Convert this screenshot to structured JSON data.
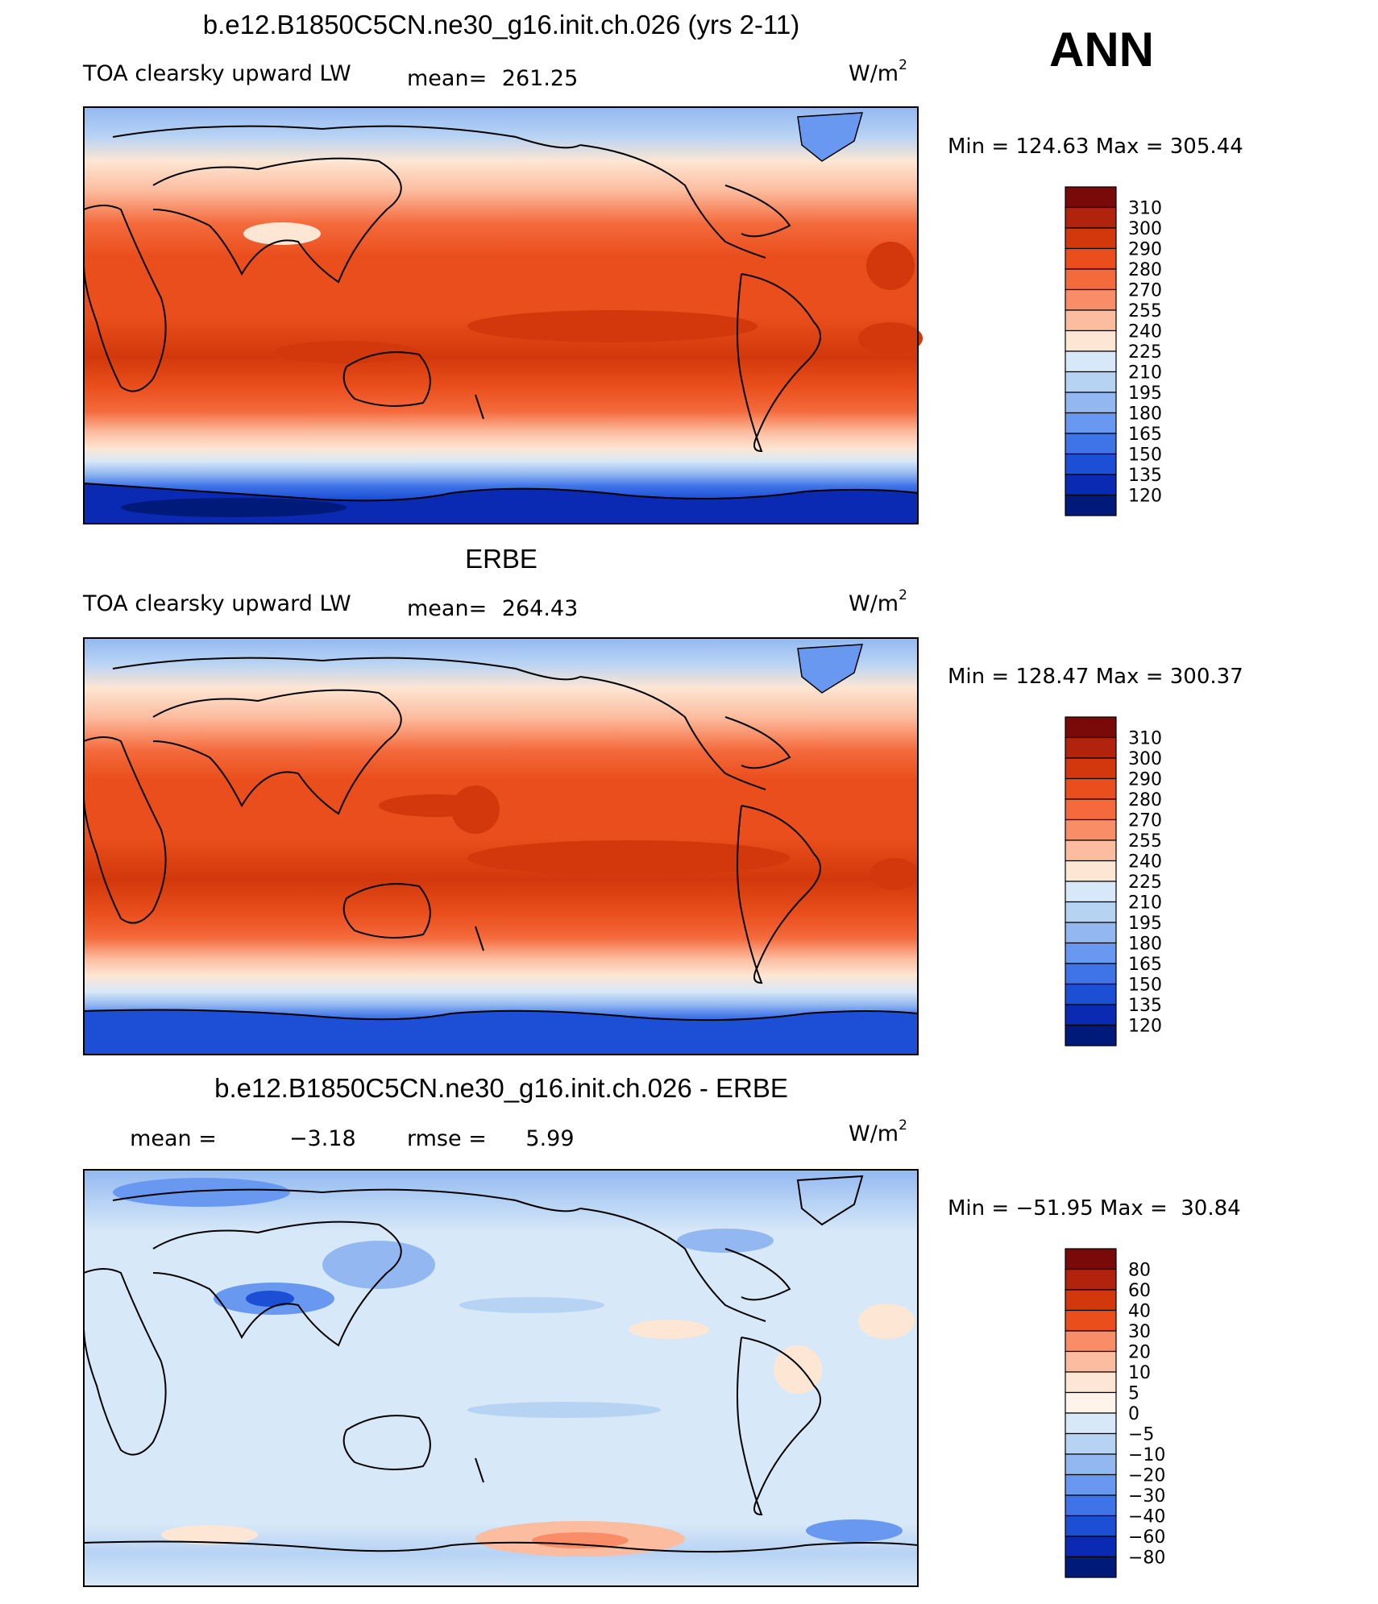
{
  "season": "ANN",
  "units_label": "W/m",
  "units_sup": "2",
  "panels": [
    {
      "title": "b.e12.B1850C5CN.ne30_g16.init.ch.026 (yrs 2-11)",
      "left_label": "TOA clearsky upward LW",
      "stat_label": "mean=",
      "stat_value": "261.25",
      "minmax": "Min = 124.63 Max = 305.44",
      "colorbar": [
        "310",
        "300",
        "290",
        "280",
        "270",
        "255",
        "240",
        "225",
        "210",
        "195",
        "180",
        "165",
        "150",
        "135",
        "120"
      ]
    },
    {
      "title": "ERBE",
      "left_label": "TOA clearsky upward LW",
      "stat_label": "mean=",
      "stat_value": "264.43",
      "minmax": "Min = 128.47 Max = 300.37",
      "colorbar": [
        "310",
        "300",
        "290",
        "280",
        "270",
        "255",
        "240",
        "225",
        "210",
        "195",
        "180",
        "165",
        "150",
        "135",
        "120"
      ]
    },
    {
      "title": "b.e12.B1850C5CN.ne30_g16.init.ch.026 - ERBE",
      "left_label": "mean =",
      "left_value": "−3.18",
      "stat_label": "rmse =",
      "stat_value": "5.99",
      "minmax": "Min = −51.95 Max =  30.84",
      "colorbar": [
        "80",
        "60",
        "40",
        "30",
        "20",
        "10",
        "5",
        "0",
        "−5",
        "−10",
        "−20",
        "−30",
        "−40",
        "−60",
        "−80"
      ]
    }
  ],
  "colors": {
    "scale16": [
      "#7a0a0a",
      "#b2230d",
      "#d2380b",
      "#ea4e1c",
      "#f46a3c",
      "#f98d68",
      "#fcbc9f",
      "#fde6d3",
      "#d7e8f8",
      "#b7d3f4",
      "#93b8f1",
      "#6898ef",
      "#3f74e8",
      "#1d4ed6",
      "#0b2ab3",
      "#001a7a"
    ],
    "diff16": [
      "#7a0a0a",
      "#b2230d",
      "#d2380b",
      "#ea4e1c",
      "#f98d68",
      "#fcbc9f",
      "#fde6d3",
      "#fff3ea",
      "#d7e8f8",
      "#b7d3f4",
      "#93b8f1",
      "#6898ef",
      "#3f74e8",
      "#1d4ed6",
      "#0b2ab3",
      "#001a7a"
    ]
  }
}
